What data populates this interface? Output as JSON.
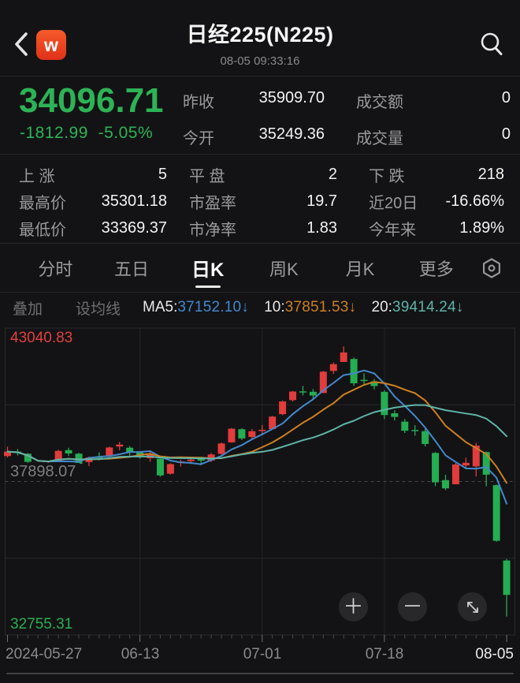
{
  "app": {
    "logo_text": "w",
    "title": "日经225(N225)",
    "subtitle": "08-05 09:33:16"
  },
  "quote": {
    "price": "34096.71",
    "change": "-1812.99",
    "change_pct": "-5.05%",
    "price_color": "#2db356",
    "fields": [
      {
        "label": "昨收",
        "value": "35909.70"
      },
      {
        "label": "成交额",
        "value": "0"
      },
      {
        "label": "今开",
        "value": "35249.36"
      },
      {
        "label": "成交量",
        "value": "0"
      }
    ]
  },
  "stats": {
    "items": [
      {
        "label": "上 涨",
        "value": "5"
      },
      {
        "label": "平 盘",
        "value": "2"
      },
      {
        "label": "下 跌",
        "value": "218"
      },
      {
        "label": "最高价",
        "value": "35301.18"
      },
      {
        "label": "市盈率",
        "value": "19.7"
      },
      {
        "label": "近20日",
        "value": "-16.66%"
      },
      {
        "label": "最低价",
        "value": "33369.37"
      },
      {
        "label": "市净率",
        "value": "1.83"
      },
      {
        "label": "今年来",
        "value": "1.89%"
      }
    ]
  },
  "tabs": {
    "items": [
      "分时",
      "五日",
      "日K",
      "周K",
      "月K",
      "更多"
    ],
    "active": "日K"
  },
  "subbar": {
    "overlay_label": "叠加",
    "ma_setting_label": "设均线",
    "ma_legend": [
      {
        "name": "MA5:",
        "value": "37152.10",
        "dir": "↓"
      },
      {
        "name": "10:",
        "value": "37851.53",
        "dir": "↓"
      },
      {
        "name": "20:",
        "value": "39414.24",
        "dir": "↓"
      }
    ]
  },
  "controls": {
    "zoom_in": "＋",
    "zoom_out": "－"
  },
  "chart_data": {
    "type": "candlestick",
    "title": "日经225(N225) 日K",
    "scale": {
      "min": 32755.31,
      "max": 43040.83
    },
    "y_labels": {
      "max": "43040.83",
      "mid": "37898.07",
      "min": "32755.31"
    },
    "x_ticks": [
      "2024-05-27",
      "06-13",
      "07-01",
      "07-18",
      "08-05"
    ],
    "x_tick_indices": [
      0,
      13,
      25,
      37,
      49
    ],
    "colors": {
      "up": "#e23c3c",
      "down": "#25ad52",
      "ma5": "#4488cc",
      "ma10": "#cc7f22",
      "ma20": "#5fb3a8"
    },
    "ma_windows": [
      5,
      10,
      20
    ],
    "candles": [
      [
        "05-27",
        38750,
        39065,
        38700,
        38900.02
      ],
      [
        "05-28",
        38900,
        38985,
        38770,
        38855.37
      ],
      [
        "05-29",
        38830,
        38850,
        38525,
        38556.87
      ],
      [
        "05-30",
        38410,
        38440,
        37958,
        38054.13
      ],
      [
        "05-31",
        38120,
        38540,
        38087,
        38487.9
      ],
      [
        "06-03",
        38590,
        38960,
        38550,
        38923.03
      ],
      [
        "06-04",
        38950,
        39030,
        38750,
        38837.46
      ],
      [
        "06-05",
        38830,
        38858,
        38434,
        38490.17
      ],
      [
        "06-06",
        38550,
        38730,
        38415,
        38703.51
      ],
      [
        "06-07",
        38720,
        38880,
        38605,
        38683.93
      ],
      [
        "06-10",
        38760,
        39065,
        38720,
        39038.16
      ],
      [
        "06-11",
        39070,
        39220,
        38945,
        39134.79
      ],
      [
        "06-12",
        39030,
        39085,
        38765,
        38876.71
      ],
      [
        "06-13",
        38870,
        38905,
        38661,
        38720.47
      ],
      [
        "06-14",
        38680,
        38925,
        38560,
        38814.56
      ],
      [
        "06-17",
        38660,
        38665,
        38056,
        38102.44
      ],
      [
        "06-18",
        38160,
        38510,
        38130,
        38482.11
      ],
      [
        "06-19",
        38520,
        38625,
        38400,
        38570.76
      ],
      [
        "06-20",
        38580,
        38715,
        38485,
        38633.02
      ],
      [
        "06-21",
        38650,
        38710,
        38445,
        38596.47
      ],
      [
        "06-24",
        38600,
        38852,
        38552,
        38804.65
      ],
      [
        "06-25",
        38825,
        39205,
        38798,
        39173.15
      ],
      [
        "06-26",
        39210,
        39695,
        39195,
        39667.07
      ],
      [
        "06-27",
        39650,
        39685,
        39287,
        39341.54
      ],
      [
        "06-28",
        39390,
        39655,
        39332,
        39583.08
      ],
      [
        "07-01",
        39590,
        39795,
        39452,
        39631.06
      ],
      [
        "07-02",
        39655,
        40095,
        39650,
        40074.69
      ],
      [
        "07-03",
        40155,
        40615,
        40120,
        40580.76
      ],
      [
        "07-04",
        40625,
        40935,
        40575,
        40913.65
      ],
      [
        "07-05",
        40920,
        41105,
        40785,
        40912.37
      ],
      [
        "07-08",
        40905,
        40995,
        40645,
        40780.7
      ],
      [
        "07-09",
        40865,
        41605,
        40860,
        41580.17
      ],
      [
        "07-10",
        41605,
        41890,
        41505,
        41831.99
      ],
      [
        "07-11",
        41905,
        42426,
        41905,
        42224.02
      ],
      [
        "07-12",
        42005,
        42055,
        41105,
        41190.68
      ],
      [
        "07-16",
        41305,
        41525,
        41125,
        41275.08
      ],
      [
        "07-17",
        41255,
        41335,
        40985,
        41097.69
      ],
      [
        "07-18",
        40905,
        40955,
        39992,
        40126.35
      ],
      [
        "07-19",
        40185,
        40285,
        39945,
        40063.79
      ],
      [
        "07-22",
        39905,
        39995,
        39525,
        39599.0
      ],
      [
        "07-23",
        39625,
        39785,
        39435,
        39594.39
      ],
      [
        "07-24",
        39585,
        39655,
        39075,
        39154.85
      ],
      [
        "07-25",
        38855,
        38885,
        37745,
        37869.51
      ],
      [
        "07-26",
        37945,
        38125,
        37611,
        37667.41
      ],
      [
        "07-29",
        37805,
        38515,
        37800,
        38468.63
      ],
      [
        "07-30",
        38435,
        38695,
        38335,
        38525.95
      ],
      [
        "07-31",
        38405,
        39195,
        38065,
        39101.82
      ],
      [
        "08-01",
        38885,
        38905,
        37737,
        38126.33
      ],
      [
        "08-02",
        37775,
        37795,
        35880,
        35909.7
      ],
      [
        "08-05",
        35249.36,
        35301.18,
        33369.37,
        34096.71
      ]
    ]
  }
}
